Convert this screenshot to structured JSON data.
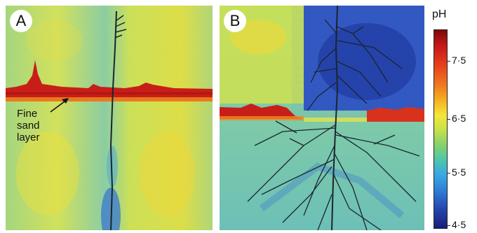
{
  "panels": [
    {
      "label": "A"
    },
    {
      "label": "B"
    }
  ],
  "annotation": {
    "line1": "Fine",
    "line2": "sand",
    "line3": "layer"
  },
  "colorbar": {
    "title": "pH",
    "ticks": [
      "7·5",
      "6·5",
      "5·5",
      "4·5"
    ]
  },
  "colors": {
    "neutral_field": "#c6e05a",
    "sand_layer": "#c8241c",
    "acidic_zone": "#2a49b8",
    "root": "#1a2530"
  }
}
